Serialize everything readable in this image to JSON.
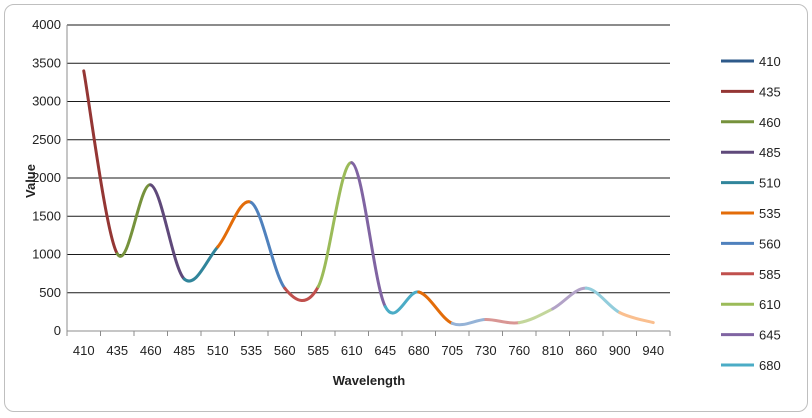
{
  "chart_data": {
    "type": "line",
    "title": "",
    "xlabel": "Wavelength",
    "ylabel": "Value",
    "ylim": [
      0,
      4000
    ],
    "yticks": [
      0,
      500,
      1000,
      1500,
      2000,
      2500,
      3000,
      3500,
      4000
    ],
    "grid": true,
    "legend_position": "right",
    "x": [
      "410",
      "435",
      "460",
      "485",
      "510",
      "535",
      "560",
      "585",
      "610",
      "645",
      "680",
      "705",
      "730",
      "760",
      "810",
      "860",
      "900",
      "940"
    ],
    "values": [
      3400,
      1010,
      1910,
      680,
      1100,
      1680,
      560,
      580,
      2200,
      320,
      510,
      100,
      150,
      110,
      290,
      560,
      240,
      110
    ],
    "series": [
      {
        "name": "410",
        "color": "#2E5A8A"
      },
      {
        "name": "435",
        "color": "#943634"
      },
      {
        "name": "460",
        "color": "#76923C"
      },
      {
        "name": "485",
        "color": "#5F497A"
      },
      {
        "name": "510",
        "color": "#31859B"
      },
      {
        "name": "535",
        "color": "#E36C09"
      },
      {
        "name": "560",
        "color": "#4F81BD"
      },
      {
        "name": "585",
        "color": "#C0504D"
      },
      {
        "name": "610",
        "color": "#9BBB59"
      },
      {
        "name": "645",
        "color": "#8064A2"
      },
      {
        "name": "680",
        "color": "#4BACC6"
      }
    ],
    "segment_colors": [
      "#943634",
      "#76923C",
      "#5F497A",
      "#31859B",
      "#E36C09",
      "#4F81BD",
      "#C0504D",
      "#9BBB59",
      "#8064A2",
      "#4BACC6",
      "#E36C09",
      "#95B3D7",
      "#D99694",
      "#C3D69B",
      "#B2A2C7",
      "#92CDDC",
      "#FABF8F"
    ]
  }
}
